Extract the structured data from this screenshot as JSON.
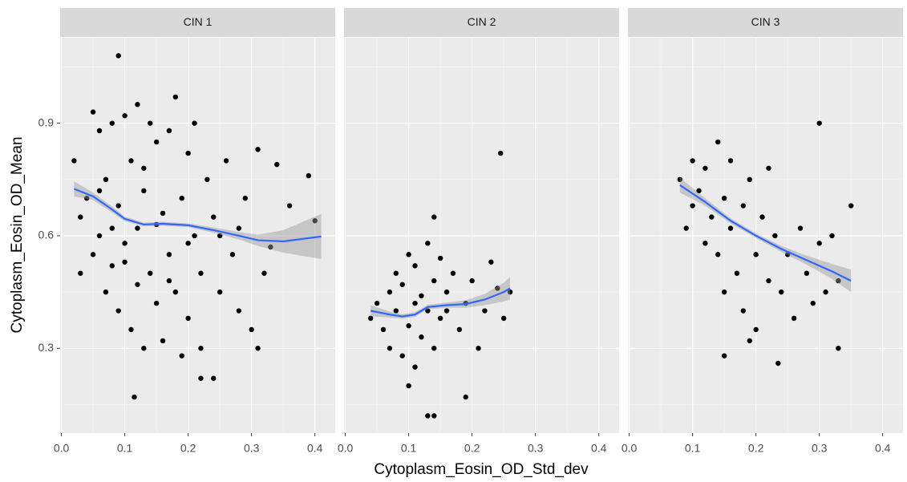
{
  "chart_data": {
    "type": "scatter",
    "x_label": "Cytoplasm_Eosin_OD_Std_dev",
    "y_label": "Cytoplasm_Eosin_OD_Mean",
    "xlim": [
      -0.002,
      0.432
    ],
    "ylim": [
      0.074,
      1.128
    ],
    "xticks": [
      {
        "value": 0,
        "label": "0.0"
      },
      0.1,
      0.2,
      0.3,
      0.4
    ],
    "yticks": [
      0.3,
      0.6,
      0.9
    ],
    "minor_xticks": [
      0.05,
      0.15,
      0.25,
      0.35
    ],
    "minor_yticks": [
      0.15,
      0.45,
      0.75,
      1.05
    ],
    "grid": true,
    "point_color": "#000000",
    "line_color": "#3366ff",
    "band_color": "#999999",
    "facets": [
      {
        "title": "CIN 1",
        "x": [
          0.02,
          0.03,
          0.04,
          0.05,
          0.05,
          0.06,
          0.06,
          0.07,
          0.07,
          0.08,
          0.08,
          0.09,
          0.09,
          0.1,
          0.1,
          0.11,
          0.11,
          0.12,
          0.12,
          0.13,
          0.13,
          0.14,
          0.14,
          0.15,
          0.15,
          0.16,
          0.16,
          0.17,
          0.17,
          0.18,
          0.18,
          0.19,
          0.19,
          0.2,
          0.2,
          0.21,
          0.21,
          0.22,
          0.22,
          0.23,
          0.24,
          0.25,
          0.26,
          0.27,
          0.28,
          0.29,
          0.3,
          0.31,
          0.32,
          0.34,
          0.36,
          0.39,
          0.4,
          0.09,
          0.115,
          0.22,
          0.24,
          0.31,
          0.03,
          0.08,
          0.13,
          0.17,
          0.12,
          0.06,
          0.1,
          0.15,
          0.2,
          0.25,
          0.28,
          0.33
        ],
        "y": [
          0.8,
          0.5,
          0.7,
          0.93,
          0.55,
          0.88,
          0.6,
          0.45,
          0.75,
          0.9,
          0.52,
          0.4,
          0.68,
          0.92,
          0.58,
          0.35,
          0.8,
          0.95,
          0.62,
          0.3,
          0.72,
          0.9,
          0.5,
          0.42,
          0.85,
          0.66,
          0.32,
          0.88,
          0.55,
          0.97,
          0.45,
          0.28,
          0.7,
          0.82,
          0.38,
          0.6,
          0.9,
          0.5,
          0.3,
          0.75,
          0.65,
          0.45,
          0.8,
          0.55,
          0.4,
          0.7,
          0.35,
          0.83,
          0.5,
          0.79,
          0.68,
          0.76,
          0.64,
          1.08,
          0.17,
          0.22,
          0.22,
          0.3,
          0.65,
          0.62,
          0.78,
          0.48,
          0.47,
          0.72,
          0.53,
          0.63,
          0.58,
          0.6,
          0.62,
          0.57
        ],
        "smooth": {
          "x": [
            0.02,
            0.05,
            0.08,
            0.1,
            0.13,
            0.16,
            0.2,
            0.24,
            0.28,
            0.31,
            0.35,
            0.41
          ],
          "y": [
            0.725,
            0.705,
            0.67,
            0.645,
            0.63,
            0.632,
            0.628,
            0.615,
            0.6,
            0.588,
            0.585,
            0.598
          ],
          "lower": [
            0.705,
            0.695,
            0.662,
            0.639,
            0.625,
            0.627,
            0.623,
            0.608,
            0.59,
            0.573,
            0.555,
            0.538
          ],
          "upper": [
            0.745,
            0.715,
            0.678,
            0.651,
            0.635,
            0.637,
            0.633,
            0.622,
            0.61,
            0.603,
            0.615,
            0.658
          ]
        }
      },
      {
        "title": "CIN 2",
        "x": [
          0.04,
          0.05,
          0.06,
          0.07,
          0.07,
          0.08,
          0.08,
          0.09,
          0.09,
          0.1,
          0.1,
          0.11,
          0.11,
          0.12,
          0.12,
          0.13,
          0.13,
          0.14,
          0.14,
          0.15,
          0.15,
          0.16,
          0.17,
          0.18,
          0.19,
          0.2,
          0.21,
          0.22,
          0.23,
          0.24,
          0.25,
          0.26,
          0.245,
          0.14,
          0.1,
          0.14,
          0.13,
          0.19,
          0.11,
          0.16
        ],
        "y": [
          0.38,
          0.42,
          0.35,
          0.45,
          0.3,
          0.5,
          0.4,
          0.28,
          0.47,
          0.55,
          0.36,
          0.25,
          0.52,
          0.44,
          0.33,
          0.58,
          0.4,
          0.48,
          0.3,
          0.54,
          0.38,
          0.45,
          0.5,
          0.35,
          0.42,
          0.48,
          0.3,
          0.4,
          0.53,
          0.46,
          0.38,
          0.45,
          0.82,
          0.65,
          0.2,
          0.12,
          0.12,
          0.17,
          0.42,
          0.4
        ],
        "smooth": {
          "x": [
            0.04,
            0.07,
            0.09,
            0.11,
            0.13,
            0.16,
            0.19,
            0.22,
            0.25,
            0.26
          ],
          "y": [
            0.4,
            0.39,
            0.385,
            0.39,
            0.41,
            0.415,
            0.418,
            0.43,
            0.45,
            0.46
          ],
          "lower": [
            0.385,
            0.382,
            0.379,
            0.384,
            0.404,
            0.408,
            0.408,
            0.415,
            0.425,
            0.43
          ],
          "upper": [
            0.415,
            0.398,
            0.391,
            0.396,
            0.416,
            0.422,
            0.428,
            0.445,
            0.475,
            0.49
          ]
        }
      },
      {
        "title": "CIN 3",
        "x": [
          0.08,
          0.09,
          0.1,
          0.1,
          0.11,
          0.12,
          0.12,
          0.13,
          0.14,
          0.14,
          0.15,
          0.15,
          0.16,
          0.16,
          0.17,
          0.18,
          0.18,
          0.19,
          0.2,
          0.2,
          0.21,
          0.22,
          0.22,
          0.23,
          0.24,
          0.25,
          0.26,
          0.27,
          0.28,
          0.29,
          0.3,
          0.31,
          0.32,
          0.33,
          0.35,
          0.3,
          0.235,
          0.33,
          0.15,
          0.19
        ],
        "y": [
          0.75,
          0.62,
          0.8,
          0.68,
          0.72,
          0.58,
          0.78,
          0.65,
          0.85,
          0.55,
          0.45,
          0.7,
          0.62,
          0.8,
          0.5,
          0.68,
          0.4,
          0.75,
          0.55,
          0.35,
          0.65,
          0.48,
          0.78,
          0.6,
          0.45,
          0.55,
          0.38,
          0.62,
          0.5,
          0.42,
          0.58,
          0.45,
          0.6,
          0.48,
          0.68,
          0.9,
          0.26,
          0.3,
          0.28,
          0.32
        ],
        "smooth": {
          "x": [
            0.08,
            0.12,
            0.16,
            0.2,
            0.24,
            0.28,
            0.32,
            0.35
          ],
          "y": [
            0.735,
            0.69,
            0.64,
            0.6,
            0.565,
            0.535,
            0.505,
            0.48
          ],
          "lower": [
            0.715,
            0.68,
            0.633,
            0.594,
            0.557,
            0.523,
            0.485,
            0.45
          ],
          "upper": [
            0.755,
            0.7,
            0.647,
            0.606,
            0.573,
            0.547,
            0.525,
            0.51
          ]
        }
      }
    ]
  }
}
